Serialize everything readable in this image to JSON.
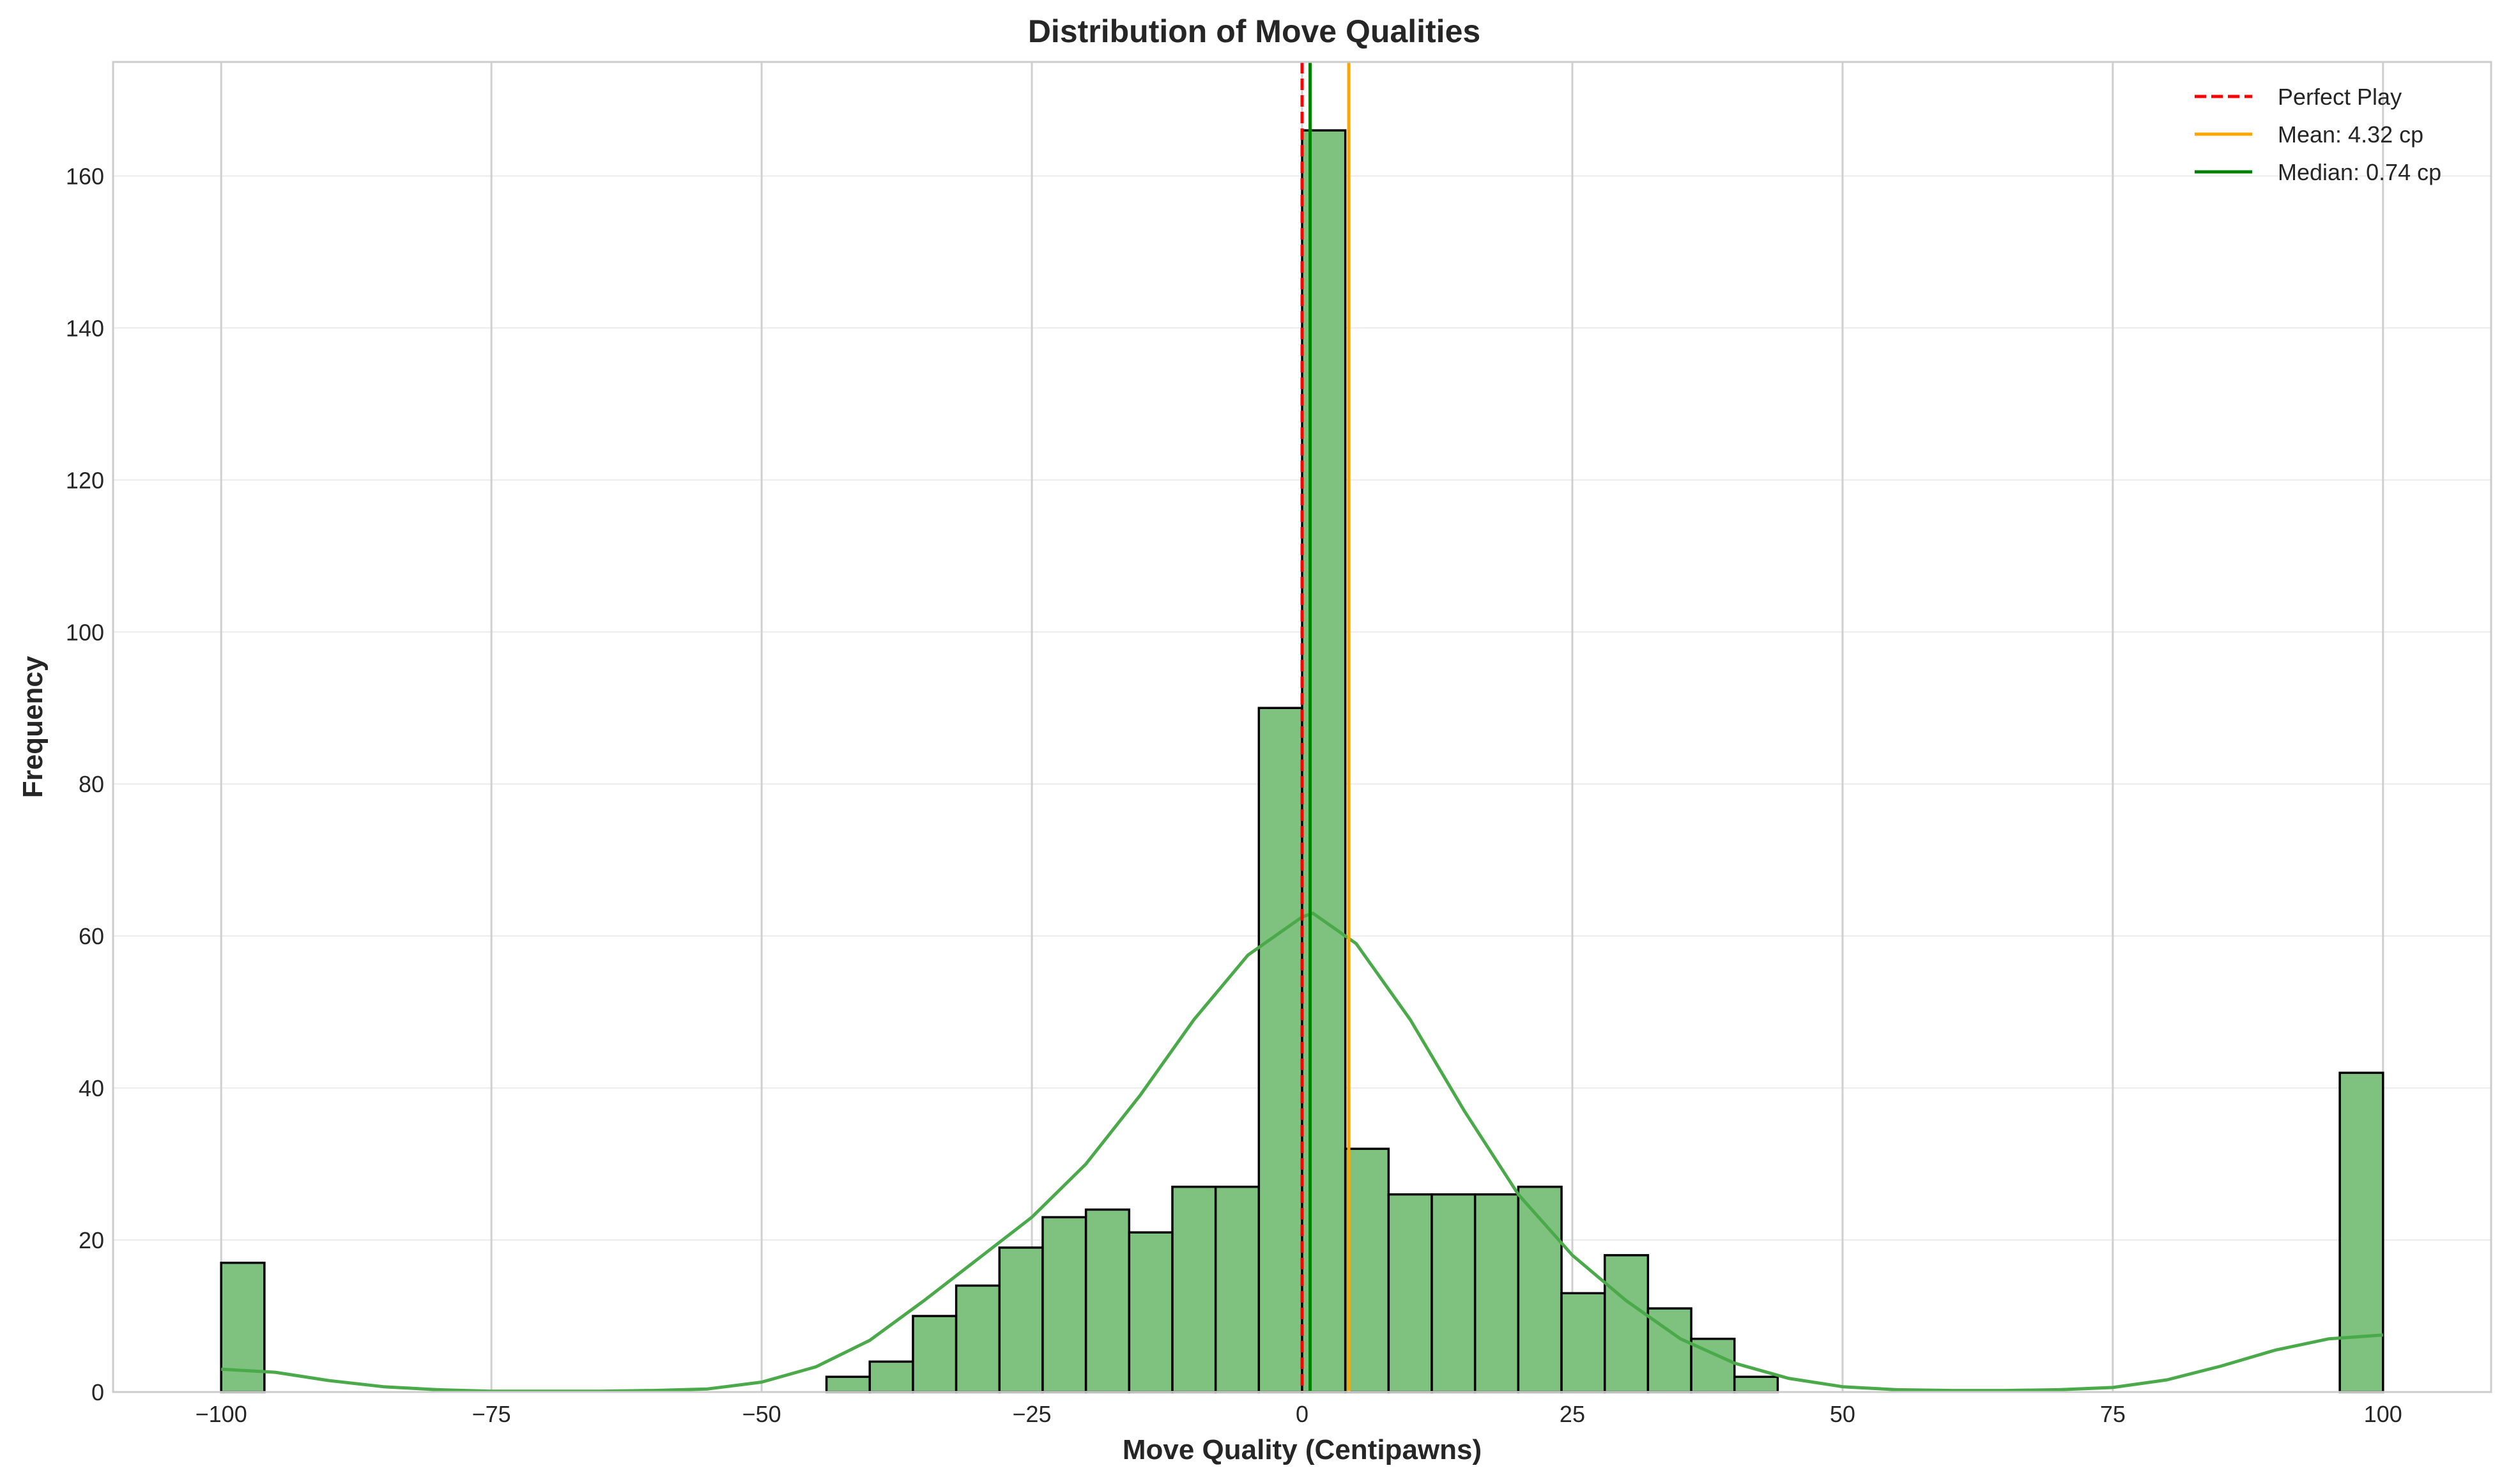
{
  "chart_data": {
    "type": "bar",
    "title": "Distribution of Move Qualities",
    "xlabel": "Move Quality (Centipawns)",
    "ylabel": "Frequency",
    "xlim": [
      -110,
      110
    ],
    "ylim": [
      0,
      175
    ],
    "xticks": [
      -100,
      -75,
      -50,
      -25,
      0,
      25,
      50,
      75,
      100
    ],
    "xtick_labels": [
      "−100",
      "−75",
      "−50",
      "−25",
      "0",
      "25",
      "50",
      "75",
      "100"
    ],
    "yticks": [
      0,
      20,
      40,
      60,
      80,
      100,
      120,
      140,
      160
    ],
    "ytick_labels": [
      "0",
      "20",
      "40",
      "60",
      "80",
      "100",
      "120",
      "140",
      "160"
    ],
    "grid": true,
    "legend_position": "top-right",
    "bar_color": "#7fc17f",
    "bar_edge_color": "#000000",
    "kde_color": "#4aaa4a",
    "bins": [
      {
        "x0": -100,
        "x1": -96,
        "count": 17
      },
      {
        "x0": -44,
        "x1": -40,
        "count": 2
      },
      {
        "x0": -40,
        "x1": -36,
        "count": 4
      },
      {
        "x0": -36,
        "x1": -32,
        "count": 10
      },
      {
        "x0": -32,
        "x1": -28,
        "count": 14
      },
      {
        "x0": -28,
        "x1": -24,
        "count": 19
      },
      {
        "x0": -24,
        "x1": -20,
        "count": 23
      },
      {
        "x0": -20,
        "x1": -16,
        "count": 24
      },
      {
        "x0": -16,
        "x1": -12,
        "count": 21
      },
      {
        "x0": -12,
        "x1": -8,
        "count": 27
      },
      {
        "x0": -8,
        "x1": -4,
        "count": 27
      },
      {
        "x0": -4,
        "x1": 0,
        "count": 90
      },
      {
        "x0": 0,
        "x1": 4,
        "count": 166
      },
      {
        "x0": 4,
        "x1": 8,
        "count": 32
      },
      {
        "x0": 8,
        "x1": 12,
        "count": 26
      },
      {
        "x0": 12,
        "x1": 16,
        "count": 26
      },
      {
        "x0": 16,
        "x1": 20,
        "count": 26
      },
      {
        "x0": 20,
        "x1": 24,
        "count": 27
      },
      {
        "x0": 24,
        "x1": 28,
        "count": 13
      },
      {
        "x0": 28,
        "x1": 32,
        "count": 18
      },
      {
        "x0": 32,
        "x1": 36,
        "count": 11
      },
      {
        "x0": 36,
        "x1": 40,
        "count": 7
      },
      {
        "x0": 40,
        "x1": 44,
        "count": 2
      },
      {
        "x0": 96,
        "x1": 100,
        "count": 42
      }
    ],
    "kde": {
      "x": [
        -100,
        -95,
        -90,
        -85,
        -80,
        -75,
        -70,
        -65,
        -60,
        -55,
        -50,
        -45,
        -40,
        -35,
        -30,
        -25,
        -20,
        -15,
        -10,
        -5,
        0,
        1,
        5,
        10,
        15,
        20,
        25,
        30,
        35,
        40,
        45,
        50,
        55,
        60,
        65,
        70,
        75,
        80,
        85,
        90,
        95,
        100
      ],
      "y": [
        3,
        2.6,
        1.5,
        0.7,
        0.3,
        0.1,
        0.1,
        0.1,
        0.2,
        0.4,
        1.3,
        3.3,
        6.8,
        12,
        17.5,
        23,
        30,
        39,
        49,
        57.5,
        62.5,
        63,
        59,
        49,
        37,
        26,
        18,
        12,
        7,
        3.8,
        1.8,
        0.7,
        0.3,
        0.2,
        0.2,
        0.3,
        0.6,
        1.6,
        3.4,
        5.5,
        7,
        7.5
      ]
    },
    "vlines": [
      {
        "name": "Perfect Play",
        "x": 0,
        "color": "#ff0000",
        "style": "dashed"
      },
      {
        "name": "Mean: 4.32 cp",
        "x": 4.32,
        "color": "#ffa500",
        "style": "solid"
      },
      {
        "name": "Median: 0.74 cp",
        "x": 0.74,
        "color": "#008000",
        "style": "solid"
      }
    ]
  }
}
